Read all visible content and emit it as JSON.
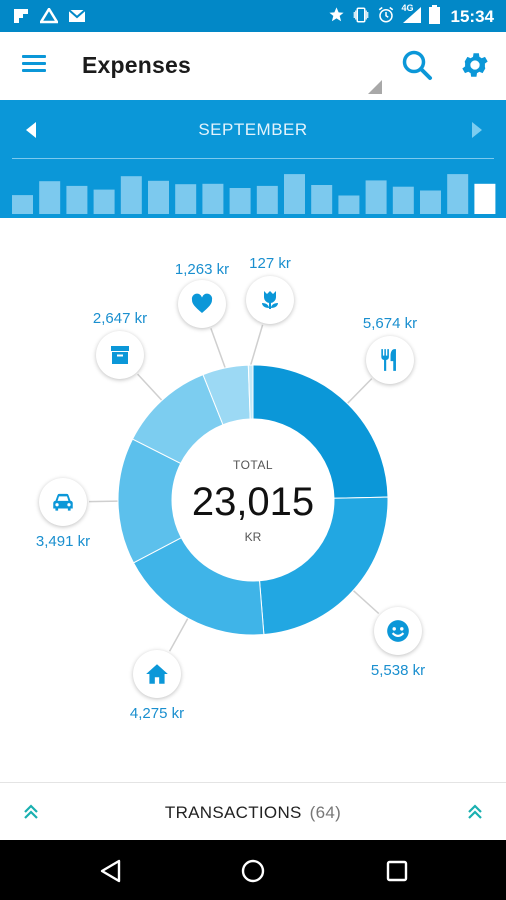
{
  "status_bar": {
    "time": "15:34",
    "network": "4G",
    "left_icons": [
      "flipboard-icon",
      "drive-icon",
      "gmail-icon"
    ],
    "right_icons": [
      "star-icon",
      "vibrate-icon",
      "alarm-icon",
      "signal-icon",
      "battery-icon"
    ]
  },
  "app_bar": {
    "title": "Expenses"
  },
  "month": {
    "label": "SEPTEMBER",
    "history_levels": [
      0.45,
      0.78,
      0.67,
      0.58,
      0.9,
      0.79,
      0.71,
      0.72,
      0.62,
      0.67,
      0.95,
      0.69,
      0.44,
      0.8,
      0.65,
      0.56,
      0.95,
      0.72
    ],
    "current_index": 17
  },
  "total": {
    "label": "TOTAL",
    "value": "23,015",
    "unit": "KR"
  },
  "categories": [
    {
      "icon": "restaurant-icon",
      "amount": "5,674 kr",
      "value": 5674,
      "color": "#0b97d8"
    },
    {
      "icon": "smiley-icon",
      "amount": "5,538 kr",
      "value": 5538,
      "color": "#22a7e2"
    },
    {
      "icon": "home-icon",
      "amount": "4,275 kr",
      "value": 4275,
      "color": "#3fb4e8"
    },
    {
      "icon": "car-icon",
      "amount": "3,491 kr",
      "value": 3491,
      "color": "#5cc0ec"
    },
    {
      "icon": "archive-icon",
      "amount": "2,647 kr",
      "value": 2647,
      "color": "#7ccdf0"
    },
    {
      "icon": "heart-icon",
      "amount": "1,263 kr",
      "value": 1263,
      "color": "#9cd9f4"
    },
    {
      "icon": "flower-icon",
      "amount": "127 kr",
      "value": 127,
      "color": "#c4e9f8"
    }
  ],
  "transactions": {
    "label": "TRANSACTIONS",
    "count": "(64)"
  },
  "colors": {
    "status_bar": "#0288c7",
    "accent": "#0b97d8"
  }
}
